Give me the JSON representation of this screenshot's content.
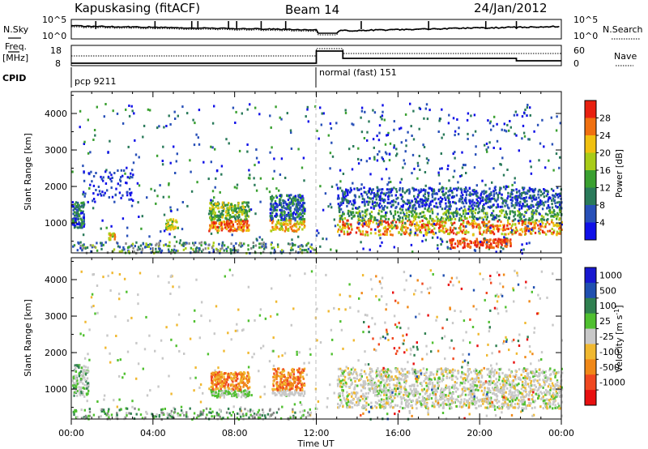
{
  "header": {
    "station": "Kapuskasing (fitACF)",
    "beam": "Beam 14",
    "date": "24/Jan/2012"
  },
  "noise_panel": {
    "left_label": "N.Sky",
    "right_label": "N.Search",
    "left_ticks": [
      "10^5",
      "10^0"
    ],
    "right_ticks": [
      "10^5",
      "10^0"
    ]
  },
  "freq_panel": {
    "left_label_1": "Freq.",
    "left_label_2": "[MHz]",
    "right_label": "Nave",
    "left_ticks": [
      "18",
      "8"
    ],
    "right_ticks": [
      "60",
      "0"
    ],
    "cpid_label": "CPID",
    "segments": [
      {
        "label": "pcp 9211",
        "start_h": 0,
        "end_h": 12
      },
      {
        "label": "normal (fast) 151",
        "start_h": 12,
        "end_h": 24
      }
    ]
  },
  "colors": {
    "power": [
      "#1010e8",
      "#2850b8",
      "#2a7a5a",
      "#3aa030",
      "#a8cc18",
      "#f0c010",
      "#f07010",
      "#e82010"
    ],
    "velocity": [
      "#e81010",
      "#f04820",
      "#f08818",
      "#f0b830",
      "#c8c8c8",
      "#50c030",
      "#308050",
      "#2050b0",
      "#1818d0"
    ]
  },
  "chart_data": [
    {
      "type": "heatmap",
      "title": "",
      "xlabel": "Time UT",
      "ylabel": "Slant Range [km]",
      "xlim": [
        0,
        24
      ],
      "ylim": [
        180,
        4600
      ],
      "x_ticks": [
        "00:00",
        "04:00",
        "08:00",
        "12:00",
        "16:00",
        "20:00",
        "00:00"
      ],
      "y_ticks": [
        1000,
        2000,
        3000,
        4000
      ],
      "colorbar": {
        "label": "Power [dB]",
        "ticks": [
          "28",
          "24",
          "20",
          "16",
          "12",
          "8",
          "4"
        ],
        "range": [
          0,
          32
        ]
      },
      "regions": [
        {
          "t0": 0.0,
          "t1": 0.6,
          "r0": 900,
          "r1": 1600,
          "level": "8-16"
        },
        {
          "t0": 1.8,
          "t1": 2.1,
          "r0": 550,
          "r1": 750,
          "level": "16-20"
        },
        {
          "t0": 4.6,
          "t1": 5.2,
          "r0": 850,
          "r1": 1150,
          "level": "12-20"
        },
        {
          "t0": 6.7,
          "t1": 8.7,
          "r0": 800,
          "r1": 1600,
          "level": "12-28"
        },
        {
          "t0": 9.7,
          "t1": 11.4,
          "r0": 800,
          "r1": 1800,
          "level": "8-28"
        },
        {
          "t0": 13.0,
          "t1": 24.0,
          "r0": 700,
          "r1": 2000,
          "level": "8-28"
        },
        {
          "t0": 18.5,
          "t1": 21.5,
          "r0": 350,
          "r1": 600,
          "level": "24-28"
        }
      ]
    },
    {
      "type": "heatmap",
      "title": "",
      "xlabel": "Time UT",
      "ylabel": "Slant Range [km]",
      "xlim": [
        0,
        24
      ],
      "ylim": [
        180,
        4600
      ],
      "x_ticks": [
        "00:00",
        "04:00",
        "08:00",
        "12:00",
        "16:00",
        "20:00",
        "00:00"
      ],
      "y_ticks": [
        1000,
        2000,
        3000,
        4000
      ],
      "colorbar": {
        "label": "Velocity [m s^-1]",
        "ticks": [
          "1000",
          "500",
          "100",
          "25",
          "-25",
          "-100",
          "-500",
          "-1000"
        ],
        "range": [
          -1200,
          1200
        ]
      },
      "regions": [
        {
          "t0": 0.0,
          "t1": 0.8,
          "r0": 850,
          "r1": 1700,
          "level": "-25 to 25"
        },
        {
          "t0": 6.8,
          "t1": 8.7,
          "r0": 800,
          "r1": 1500,
          "level": "-100 to -500"
        },
        {
          "t0": 9.8,
          "t1": 11.4,
          "r0": 850,
          "r1": 1600,
          "level": "-100 to -500"
        },
        {
          "t0": 13.0,
          "t1": 24.0,
          "r0": 500,
          "r1": 1600,
          "level": "-25 to 25"
        }
      ]
    }
  ]
}
